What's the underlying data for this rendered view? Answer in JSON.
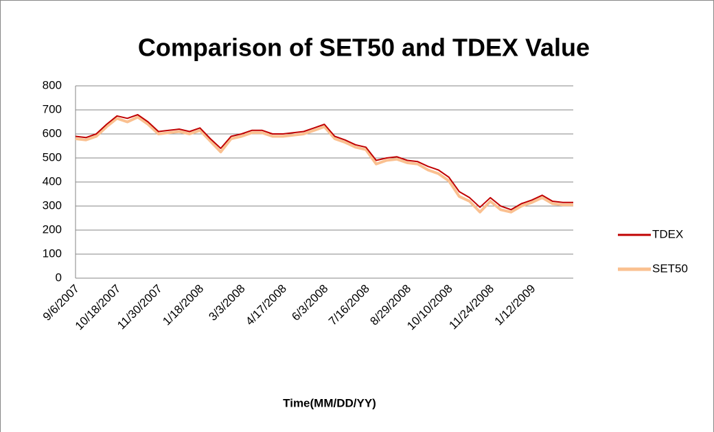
{
  "chart_data": {
    "type": "line",
    "title": "Comparison of SET50 and TDEX Value",
    "x_label": "Time(MM/DD/YY)",
    "categories": [
      "9/6/2007",
      null,
      null,
      null,
      "10/18/2007",
      null,
      null,
      null,
      "11/30/2007",
      null,
      null,
      null,
      "1/18/2008",
      null,
      null,
      null,
      "3/3/2008",
      null,
      null,
      null,
      "4/17/2008",
      null,
      null,
      null,
      "6/3/2008",
      null,
      null,
      null,
      "7/16/2008",
      null,
      null,
      null,
      "8/29/2008",
      null,
      null,
      null,
      "10/10/2008",
      null,
      null,
      null,
      "11/24/2008",
      null,
      null,
      null,
      "1/12/2009",
      null,
      null,
      null,
      null
    ],
    "series": [
      {
        "name": "TDEX",
        "color": "#c00000",
        "values": [
          590,
          585,
          600,
          640,
          675,
          665,
          680,
          650,
          610,
          615,
          620,
          610,
          625,
          580,
          540,
          590,
          600,
          615,
          615,
          600,
          600,
          605,
          610,
          625,
          640,
          590,
          575,
          555,
          545,
          490,
          500,
          505,
          490,
          485,
          465,
          450,
          420,
          360,
          335,
          295,
          335,
          300,
          285,
          310,
          325,
          345,
          320,
          315,
          315
        ]
      },
      {
        "name": "SET50",
        "color": "#fac090",
        "values": [
          580,
          575,
          590,
          630,
          665,
          650,
          670,
          640,
          600,
          605,
          610,
          600,
          615,
          570,
          525,
          580,
          590,
          605,
          605,
          590,
          590,
          595,
          600,
          615,
          630,
          580,
          565,
          545,
          535,
          475,
          490,
          495,
          480,
          475,
          450,
          435,
          405,
          340,
          320,
          275,
          320,
          285,
          275,
          300,
          315,
          335,
          310,
          305,
          305
        ]
      }
    ],
    "ylim": [
      0,
      800
    ],
    "yticks": [
      0,
      100,
      200,
      300,
      400,
      500,
      600,
      700,
      800
    ],
    "grid": true,
    "legend": "right"
  }
}
